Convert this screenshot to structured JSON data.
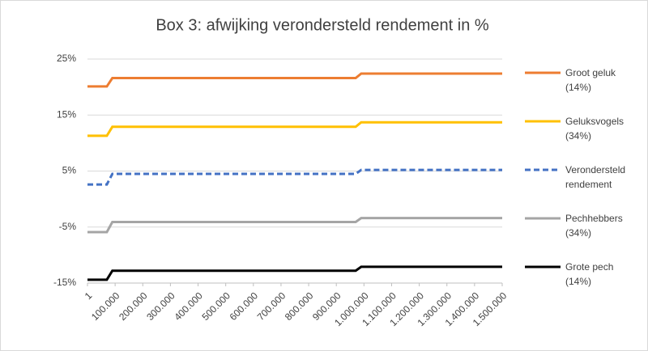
{
  "chart_data": {
    "type": "line",
    "title": "Box 3: afwijking verondersteld rendement in %",
    "x": [
      1,
      70000,
      90000,
      970000,
      990000,
      1500000
    ],
    "xlim": [
      1,
      1500000
    ],
    "xticks": [
      1,
      {
        "value": 100000,
        "label": "100.000"
      },
      {
        "value": 200000,
        "label": "200.000"
      },
      {
        "value": 300000,
        "label": "300.000"
      },
      {
        "value": 400000,
        "label": "400.000"
      },
      {
        "value": 500000,
        "label": "500.000"
      },
      {
        "value": 600000,
        "label": "600.000"
      },
      {
        "value": 700000,
        "label": "700.000"
      },
      {
        "value": 800000,
        "label": "800.000"
      },
      {
        "value": 900000,
        "label": "900.000"
      },
      {
        "value": 1000000,
        "label": "1.000.000"
      },
      {
        "value": 1100000,
        "label": "1.100.000"
      },
      {
        "value": 1200000,
        "label": "1.200.000"
      },
      {
        "value": 1300000,
        "label": "1.300.000"
      },
      {
        "value": 1400000,
        "label": "1.400.000"
      },
      {
        "value": 1500000,
        "label": "1.500.000"
      }
    ],
    "ylim": [
      -15,
      25
    ],
    "yticks": [
      {
        "value": -15,
        "label": "-15%"
      },
      {
        "value": -5,
        "label": "-5%"
      },
      {
        "value": 5,
        "label": "5%"
      },
      {
        "value": 15,
        "label": "15%"
      },
      {
        "value": 25,
        "label": "25%"
      }
    ],
    "grid": true,
    "legend": "right",
    "series": [
      {
        "name": "Groot geluk (14%)",
        "color": "#ED7D31",
        "style": "solid",
        "values": [
          20.1,
          20.1,
          21.6,
          21.6,
          22.4,
          22.4
        ]
      },
      {
        "name": "Geluksvogels (34%)",
        "color": "#FFC000",
        "style": "solid",
        "values": [
          11.3,
          11.3,
          12.9,
          12.9,
          13.7,
          13.7
        ]
      },
      {
        "name": "Verondersteld rendement",
        "color": "#4472C4",
        "style": "dashed",
        "values": [
          2.6,
          2.6,
          4.5,
          4.5,
          5.2,
          5.2
        ]
      },
      {
        "name": "Pechhebbers (34%)",
        "color": "#A5A5A5",
        "style": "solid",
        "values": [
          -5.9,
          -5.9,
          -4.1,
          -4.1,
          -3.4,
          -3.4
        ]
      },
      {
        "name": "Grote pech (14%)",
        "color": "#000000",
        "style": "solid",
        "values": [
          -14.4,
          -14.4,
          -12.8,
          -12.8,
          -12.1,
          -12.1
        ]
      }
    ]
  }
}
